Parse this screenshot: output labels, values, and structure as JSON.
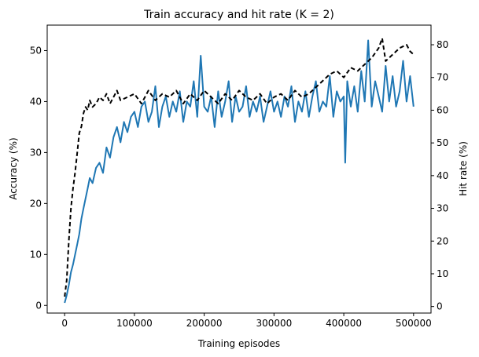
{
  "chart_data": {
    "type": "line",
    "title": "Train accuracy and hit rate (K = 2)",
    "xlabel": "Training episodes",
    "ylabel_left": "Accuracy (%)",
    "ylabel_right": "Hit rate (%)",
    "xlim": [
      -25000,
      525000
    ],
    "ylim_left": [
      -1.5,
      55
    ],
    "ylim_right": [
      -2,
      86
    ],
    "xticks": [
      0,
      100000,
      200000,
      300000,
      400000,
      500000
    ],
    "xtick_labels": [
      "0",
      "100000",
      "200000",
      "300000",
      "400000",
      "500000"
    ],
    "yticks_left": [
      0,
      10,
      20,
      30,
      40,
      50
    ],
    "yticks_right": [
      0,
      10,
      20,
      30,
      40,
      50,
      60,
      70,
      80
    ],
    "grid": false,
    "series": [
      {
        "axis": "left",
        "color": "#1f77b4",
        "style": "solid",
        "x": [
          0,
          3000,
          6000,
          9000,
          12000,
          15000,
          18000,
          21000,
          24000,
          27000,
          30000,
          33000,
          36000,
          40000,
          45000,
          50000,
          55000,
          60000,
          65000,
          70000,
          75000,
          80000,
          85000,
          90000,
          95000,
          100000,
          105000,
          110000,
          115000,
          120000,
          125000,
          130000,
          135000,
          140000,
          145000,
          150000,
          155000,
          160000,
          165000,
          170000,
          175000,
          180000,
          185000,
          190000,
          195000,
          200000,
          205000,
          210000,
          215000,
          220000,
          225000,
          230000,
          235000,
          240000,
          245000,
          250000,
          255000,
          260000,
          265000,
          270000,
          275000,
          280000,
          285000,
          290000,
          295000,
          300000,
          305000,
          310000,
          315000,
          320000,
          325000,
          330000,
          335000,
          340000,
          345000,
          350000,
          355000,
          360000,
          365000,
          370000,
          375000,
          380000,
          385000,
          390000,
          395000,
          400000,
          402000,
          405000,
          410000,
          415000,
          420000,
          425000,
          430000,
          435000,
          440000,
          445000,
          450000,
          455000,
          460000,
          465000,
          470000,
          475000,
          480000,
          485000,
          490000,
          495000,
          500000
        ],
        "y": [
          0.5,
          2,
          4,
          6.5,
          8,
          10,
          12,
          14,
          17,
          19,
          21,
          23,
          25,
          24,
          27,
          28,
          26,
          31,
          29,
          33,
          35,
          32,
          36,
          34,
          37,
          38,
          35,
          39,
          40,
          36,
          38,
          43,
          35,
          39,
          41,
          37,
          40,
          38,
          42,
          36,
          40,
          39,
          44,
          37,
          49,
          39,
          38,
          41,
          35,
          42,
          37,
          40,
          44,
          36,
          41,
          38,
          39,
          43,
          37,
          40,
          38,
          41,
          36,
          39,
          42,
          38,
          40,
          37,
          41,
          39,
          43,
          36,
          40,
          38,
          42,
          37,
          41,
          44,
          38,
          40,
          39,
          45,
          37,
          42,
          40,
          41,
          28,
          44,
          39,
          43,
          38,
          46,
          40,
          52,
          39,
          44,
          41,
          38,
          47,
          40,
          45,
          39,
          42,
          48,
          40,
          45,
          39
        ]
      },
      {
        "axis": "right",
        "color": "#000000",
        "style": "dashed",
        "x": [
          0,
          3000,
          6000,
          9000,
          12000,
          15000,
          18000,
          21000,
          24000,
          27000,
          30000,
          33000,
          36000,
          40000,
          45000,
          50000,
          55000,
          60000,
          65000,
          70000,
          75000,
          80000,
          90000,
          100000,
          110000,
          120000,
          130000,
          140000,
          150000,
          160000,
          170000,
          180000,
          190000,
          200000,
          210000,
          220000,
          230000,
          240000,
          250000,
          260000,
          270000,
          280000,
          290000,
          300000,
          310000,
          320000,
          330000,
          340000,
          350000,
          360000,
          370000,
          380000,
          390000,
          400000,
          410000,
          420000,
          430000,
          440000,
          450000,
          455000,
          460000,
          470000,
          480000,
          490000,
          495000,
          500000
        ],
        "y": [
          3,
          8,
          20,
          30,
          36,
          41,
          47,
          53,
          55,
          59,
          61,
          60,
          63,
          61,
          62,
          64,
          63,
          65,
          62,
          64,
          66,
          63,
          64,
          65,
          62,
          66,
          63,
          65,
          64,
          66,
          62,
          65,
          63,
          66,
          64,
          62,
          65,
          63,
          66,
          64,
          63,
          65,
          62,
          64,
          65,
          63,
          66,
          64,
          65,
          67,
          69,
          71,
          72,
          70,
          73,
          72,
          74,
          76,
          79,
          82,
          75,
          77,
          79,
          80,
          78,
          77
        ]
      }
    ]
  }
}
